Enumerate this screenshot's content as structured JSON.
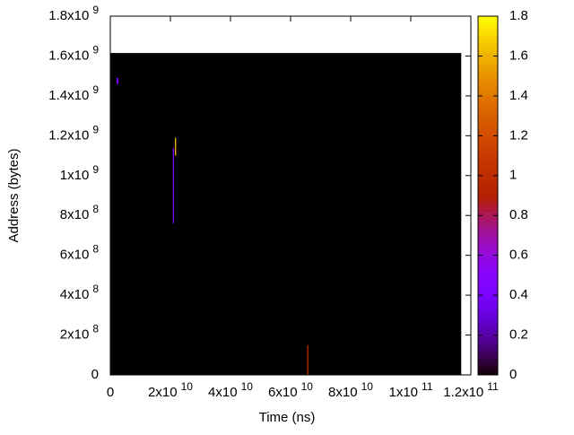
{
  "chart_data": {
    "type": "heatmap",
    "x_label": "Time (ns)",
    "y_label": "Address (bytes)",
    "xlim": [
      0,
      120000000000
    ],
    "ylim": [
      0,
      1800000000
    ],
    "xticks": [
      0,
      {
        "value": 20000000000,
        "label": "2x10",
        "exp": "10"
      },
      {
        "value": 40000000000,
        "label": "4x10",
        "exp": "10"
      },
      {
        "value": 60000000000,
        "label": "6x10",
        "exp": "10"
      },
      {
        "value": 80000000000,
        "label": "8x10",
        "exp": "10"
      },
      {
        "value": 100000000000,
        "label": "1x10",
        "exp": "11"
      },
      {
        "value": 120000000000,
        "label": "1.2x10",
        "exp": "11"
      }
    ],
    "yticks": [
      0,
      {
        "value": 200000000,
        "label": "2x10",
        "exp": "8"
      },
      {
        "value": 400000000,
        "label": "4x10",
        "exp": "8"
      },
      {
        "value": 600000000,
        "label": "6x10",
        "exp": "8"
      },
      {
        "value": 800000000,
        "label": "8x10",
        "exp": "8"
      },
      {
        "value": 1000000000,
        "label": "1x10",
        "exp": "9"
      },
      {
        "value": 1200000000,
        "label": "1.2x10",
        "exp": "9"
      },
      {
        "value": 1400000000,
        "label": "1.4x10",
        "exp": "9"
      },
      {
        "value": 1600000000,
        "label": "1.6x10",
        "exp": "9"
      },
      {
        "value": 1800000000,
        "label": "1.8x10",
        "exp": "9"
      }
    ],
    "clim": [
      0,
      1.8
    ],
    "cticks": [
      0,
      0.2,
      0.4,
      0.6,
      0.8,
      1,
      1.2,
      1.4,
      1.6,
      1.8
    ],
    "cells": [
      {
        "x0": 0,
        "x1": 116800000000,
        "y0": 0,
        "y1": 1615000000,
        "value": 0
      },
      {
        "x0": 2100000000,
        "x1": 2700000000,
        "y0": 1460000000,
        "y1": 1490000000,
        "value": 0.4
      },
      {
        "x0": 20800000000,
        "x1": 21200000000,
        "y0": 760000000,
        "y1": 1140000000,
        "value": 0.4
      },
      {
        "x0": 21500000000,
        "x1": 21900000000,
        "y0": 1100000000,
        "y1": 1190000000,
        "value": 1.6
      },
      {
        "x0": 65500000000,
        "x1": 65900000000,
        "y0": 0,
        "y1": 150000000,
        "value": 1.0
      }
    ]
  }
}
